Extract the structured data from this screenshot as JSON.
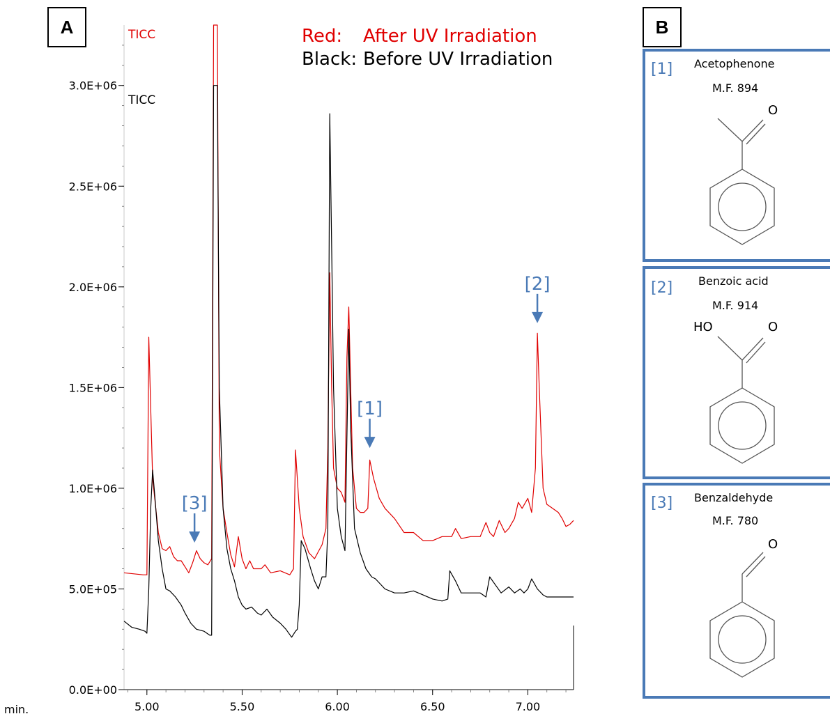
{
  "panel_a": {
    "letter": "A"
  },
  "panel_b": {
    "letter": "B"
  },
  "legend": {
    "red_key": "Red:",
    "red_text": "After UV Irradiation",
    "black_key": "Black:",
    "black_text": "Before UV Irradiation"
  },
  "trace_labels": {
    "red": "TICC",
    "black": "TICC"
  },
  "colors": {
    "red": "#e00000",
    "black": "#000000",
    "accent": "#4a7ab6"
  },
  "annotations": [
    {
      "label": "[1]",
      "x": 6.17,
      "y": 1200000
    },
    {
      "label": "[2]",
      "x": 7.05,
      "y": 1820000
    },
    {
      "label": "[3]",
      "x": 5.25,
      "y": 730000
    }
  ],
  "compounds": [
    {
      "label": "[1]",
      "name": "Acetophenone",
      "mf": "M.F. 894",
      "structure": "acetophenone"
    },
    {
      "label": "[2]",
      "name": "Benzoic acid",
      "mf": "M.F. 914",
      "structure": "benzoic-acid",
      "atoms": {
        "left": "HO",
        "right": "O"
      }
    },
    {
      "label": "[3]",
      "name": "Benzaldehyde",
      "mf": "M.F. 780",
      "structure": "benzaldehyde",
      "atoms": {
        "right": "O"
      }
    }
  ],
  "chart_data": {
    "type": "line",
    "xlabel": "min.",
    "ylabel": "",
    "xlim": [
      4.88,
      7.24
    ],
    "ylim": [
      0,
      3300000
    ],
    "x_ticks": [
      "5.00",
      "5.50",
      "6.00",
      "6.50",
      "7.00"
    ],
    "x_tick_values": [
      5.0,
      5.5,
      6.0,
      6.5,
      7.0
    ],
    "y_ticks": [
      "0.0E+00",
      "5.0E+05",
      "1.0E+06",
      "1.5E+06",
      "2.0E+06",
      "2.5E+06",
      "3.0E+06"
    ],
    "y_tick_values": [
      0,
      500000,
      1000000,
      1500000,
      2000000,
      2500000,
      3000000
    ],
    "series": [
      {
        "color": "red",
        "points": [
          [
            4.88,
            580000
          ],
          [
            4.98,
            570000
          ],
          [
            5.0,
            570000
          ],
          [
            5.01,
            1750000
          ],
          [
            5.03,
            1050000
          ],
          [
            5.06,
            780000
          ],
          [
            5.08,
            700000
          ],
          [
            5.1,
            690000
          ],
          [
            5.12,
            710000
          ],
          [
            5.14,
            660000
          ],
          [
            5.16,
            640000
          ],
          [
            5.18,
            640000
          ],
          [
            5.2,
            610000
          ],
          [
            5.22,
            580000
          ],
          [
            5.24,
            630000
          ],
          [
            5.26,
            690000
          ],
          [
            5.28,
            650000
          ],
          [
            5.3,
            630000
          ],
          [
            5.32,
            620000
          ],
          [
            5.34,
            650000
          ],
          [
            5.35,
            3300000
          ],
          [
            5.37,
            3300000
          ],
          [
            5.38,
            1200000
          ],
          [
            5.4,
            900000
          ],
          [
            5.42,
            780000
          ],
          [
            5.44,
            670000
          ],
          [
            5.46,
            610000
          ],
          [
            5.48,
            760000
          ],
          [
            5.5,
            650000
          ],
          [
            5.52,
            600000
          ],
          [
            5.54,
            640000
          ],
          [
            5.56,
            600000
          ],
          [
            5.6,
            600000
          ],
          [
            5.62,
            620000
          ],
          [
            5.65,
            580000
          ],
          [
            5.7,
            590000
          ],
          [
            5.75,
            570000
          ],
          [
            5.77,
            600000
          ],
          [
            5.78,
            1190000
          ],
          [
            5.8,
            900000
          ],
          [
            5.82,
            760000
          ],
          [
            5.85,
            680000
          ],
          [
            5.88,
            650000
          ],
          [
            5.92,
            720000
          ],
          [
            5.94,
            800000
          ],
          [
            5.95,
            1200000
          ],
          [
            5.96,
            2070000
          ],
          [
            5.97,
            1500000
          ],
          [
            5.98,
            1100000
          ],
          [
            6.0,
            1000000
          ],
          [
            6.02,
            980000
          ],
          [
            6.04,
            930000
          ],
          [
            6.05,
            1650000
          ],
          [
            6.06,
            1900000
          ],
          [
            6.07,
            1500000
          ],
          [
            6.08,
            1100000
          ],
          [
            6.1,
            900000
          ],
          [
            6.12,
            880000
          ],
          [
            6.14,
            880000
          ],
          [
            6.16,
            900000
          ],
          [
            6.17,
            1140000
          ],
          [
            6.19,
            1050000
          ],
          [
            6.22,
            950000
          ],
          [
            6.25,
            900000
          ],
          [
            6.3,
            850000
          ],
          [
            6.35,
            780000
          ],
          [
            6.4,
            780000
          ],
          [
            6.45,
            740000
          ],
          [
            6.5,
            740000
          ],
          [
            6.55,
            760000
          ],
          [
            6.6,
            760000
          ],
          [
            6.62,
            800000
          ],
          [
            6.65,
            750000
          ],
          [
            6.7,
            760000
          ],
          [
            6.75,
            760000
          ],
          [
            6.78,
            830000
          ],
          [
            6.8,
            780000
          ],
          [
            6.82,
            760000
          ],
          [
            6.85,
            840000
          ],
          [
            6.88,
            780000
          ],
          [
            6.9,
            800000
          ],
          [
            6.93,
            850000
          ],
          [
            6.95,
            930000
          ],
          [
            6.97,
            900000
          ],
          [
            7.0,
            950000
          ],
          [
            7.02,
            880000
          ],
          [
            7.04,
            1100000
          ],
          [
            7.05,
            1770000
          ],
          [
            7.06,
            1500000
          ],
          [
            7.08,
            1000000
          ],
          [
            7.1,
            920000
          ],
          [
            7.13,
            900000
          ],
          [
            7.16,
            880000
          ],
          [
            7.18,
            850000
          ],
          [
            7.2,
            810000
          ],
          [
            7.22,
            820000
          ],
          [
            7.24,
            840000
          ]
        ]
      },
      {
        "color": "black",
        "points": [
          [
            4.88,
            340000
          ],
          [
            4.92,
            310000
          ],
          [
            4.96,
            300000
          ],
          [
            4.99,
            290000
          ],
          [
            5.0,
            280000
          ],
          [
            5.01,
            500000
          ],
          [
            5.02,
            900000
          ],
          [
            5.03,
            1090000
          ],
          [
            5.04,
            980000
          ],
          [
            5.06,
            740000
          ],
          [
            5.08,
            600000
          ],
          [
            5.1,
            500000
          ],
          [
            5.12,
            490000
          ],
          [
            5.15,
            460000
          ],
          [
            5.18,
            420000
          ],
          [
            5.2,
            380000
          ],
          [
            5.23,
            330000
          ],
          [
            5.26,
            300000
          ],
          [
            5.3,
            290000
          ],
          [
            5.33,
            270000
          ],
          [
            5.34,
            270000
          ],
          [
            5.35,
            3000000
          ],
          [
            5.37,
            3000000
          ],
          [
            5.38,
            1500000
          ],
          [
            5.4,
            900000
          ],
          [
            5.42,
            700000
          ],
          [
            5.44,
            600000
          ],
          [
            5.46,
            540000
          ],
          [
            5.48,
            460000
          ],
          [
            5.5,
            420000
          ],
          [
            5.52,
            400000
          ],
          [
            5.55,
            410000
          ],
          [
            5.58,
            380000
          ],
          [
            5.6,
            370000
          ],
          [
            5.63,
            400000
          ],
          [
            5.66,
            360000
          ],
          [
            5.7,
            330000
          ],
          [
            5.73,
            300000
          ],
          [
            5.76,
            260000
          ],
          [
            5.78,
            290000
          ],
          [
            5.79,
            300000
          ],
          [
            5.8,
            420000
          ],
          [
            5.81,
            740000
          ],
          [
            5.83,
            700000
          ],
          [
            5.86,
            600000
          ],
          [
            5.88,
            540000
          ],
          [
            5.9,
            500000
          ],
          [
            5.92,
            560000
          ],
          [
            5.94,
            560000
          ],
          [
            5.95,
            800000
          ],
          [
            5.96,
            2860000
          ],
          [
            5.97,
            2200000
          ],
          [
            5.98,
            1500000
          ],
          [
            6.0,
            900000
          ],
          [
            6.02,
            760000
          ],
          [
            6.04,
            690000
          ],
          [
            6.06,
            1790000
          ],
          [
            6.07,
            1300000
          ],
          [
            6.09,
            800000
          ],
          [
            6.12,
            680000
          ],
          [
            6.15,
            600000
          ],
          [
            6.18,
            560000
          ],
          [
            6.2,
            550000
          ],
          [
            6.25,
            500000
          ],
          [
            6.3,
            480000
          ],
          [
            6.35,
            480000
          ],
          [
            6.4,
            490000
          ],
          [
            6.45,
            470000
          ],
          [
            6.5,
            450000
          ],
          [
            6.55,
            440000
          ],
          [
            6.58,
            450000
          ],
          [
            6.59,
            590000
          ],
          [
            6.62,
            540000
          ],
          [
            6.65,
            480000
          ],
          [
            6.7,
            480000
          ],
          [
            6.75,
            480000
          ],
          [
            6.78,
            460000
          ],
          [
            6.8,
            560000
          ],
          [
            6.83,
            520000
          ],
          [
            6.86,
            480000
          ],
          [
            6.9,
            510000
          ],
          [
            6.93,
            480000
          ],
          [
            6.96,
            500000
          ],
          [
            6.98,
            480000
          ],
          [
            7.0,
            500000
          ],
          [
            7.02,
            550000
          ],
          [
            7.05,
            500000
          ],
          [
            7.08,
            470000
          ],
          [
            7.1,
            460000
          ],
          [
            7.15,
            460000
          ],
          [
            7.2,
            460000
          ],
          [
            7.24,
            460000
          ]
        ]
      }
    ]
  }
}
